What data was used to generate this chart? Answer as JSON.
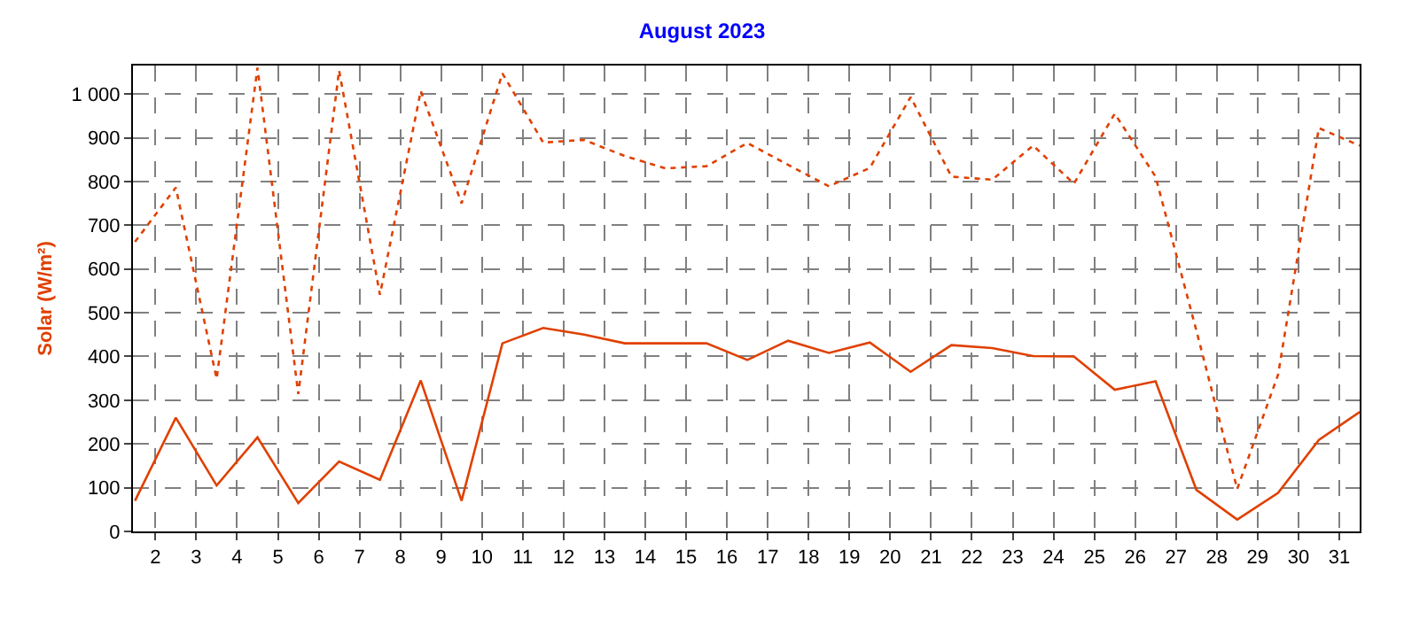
{
  "chart_data": {
    "type": "line",
    "title": "August 2023",
    "ylabel": "Solar (W/m²)",
    "x": [
      1.5,
      2.5,
      3.5,
      4.5,
      5.5,
      6.5,
      7.5,
      8.5,
      9.5,
      10.5,
      11.5,
      12.5,
      13.5,
      14.5,
      15.5,
      16.5,
      17.5,
      18.5,
      19.5,
      20.5,
      21.5,
      22.5,
      23.5,
      24.5,
      25.5,
      26.5,
      27.5,
      28.5,
      29.5,
      30.5,
      31.5
    ],
    "series": [
      {
        "color": "#e04000",
        "line_style": "solid",
        "values": [
          70,
          260,
          105,
          215,
          65,
          160,
          118,
          345,
          70,
          430,
          465,
          450,
          430,
          430,
          430,
          392,
          436,
          408,
          432,
          365,
          426,
          419,
          401,
          400,
          324,
          343,
          95,
          27,
          88,
          209,
          273
        ]
      },
      {
        "color": "#e04000",
        "line_style": "dotted",
        "values": [
          662,
          786,
          349,
          1060,
          314,
          1054,
          541,
          1007,
          750,
          1047,
          889,
          895,
          858,
          830,
          835,
          888,
          838,
          789,
          831,
          993,
          811,
          804,
          882,
          795,
          955,
          811,
          459,
          97,
          358,
          922,
          882
        ]
      }
    ],
    "xlim": [
      1.45,
      31.5
    ],
    "xticks": [
      2,
      3,
      4,
      5,
      6,
      7,
      8,
      9,
      10,
      11,
      12,
      13,
      14,
      15,
      16,
      17,
      18,
      19,
      20,
      21,
      22,
      23,
      24,
      25,
      26,
      27,
      28,
      29,
      30,
      31
    ],
    "ylim": [
      0,
      1065
    ],
    "yticks": [
      0,
      100,
      200,
      300,
      400,
      500,
      600,
      700,
      800,
      900,
      {
        "value": 1000,
        "label": "1 000"
      }
    ],
    "grid": true,
    "marker": "none"
  }
}
